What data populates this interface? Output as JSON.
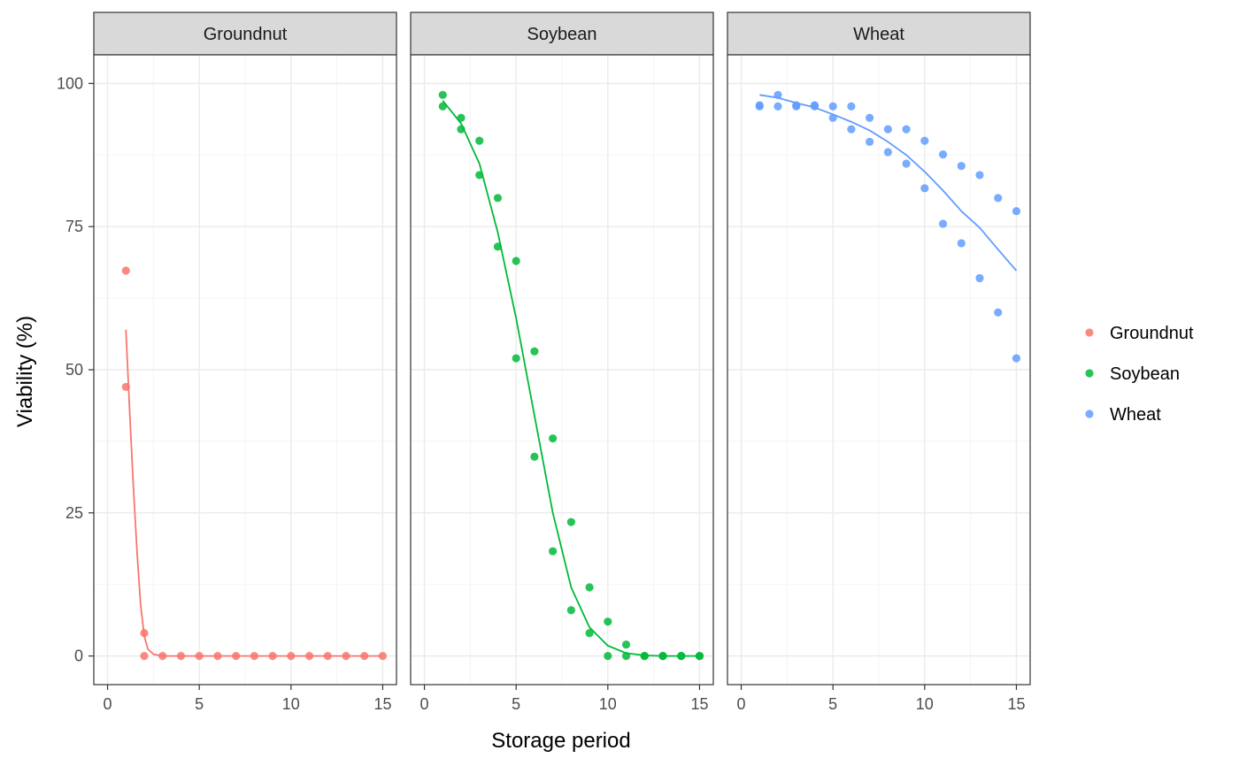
{
  "chart_data": {
    "type": "scatter",
    "facet_by": "series",
    "xlabel": "Storage period",
    "ylabel": "Viability (%)",
    "xlim": [
      -0.75,
      15.75
    ],
    "ylim": [
      -5,
      105
    ],
    "x_ticks": [
      0,
      5,
      10,
      15
    ],
    "y_ticks": [
      0,
      25,
      50,
      75,
      100
    ],
    "grid": true,
    "legend_position": "right",
    "series": [
      {
        "name": "Groundnut",
        "color": "#F8766D",
        "points": [
          [
            1,
            67.3
          ],
          [
            1,
            47
          ],
          [
            2,
            4
          ],
          [
            2,
            0
          ],
          [
            3,
            0
          ],
          [
            4,
            0
          ],
          [
            5,
            0
          ],
          [
            6,
            0
          ],
          [
            7,
            0
          ],
          [
            8,
            0
          ],
          [
            9,
            0
          ],
          [
            10,
            0
          ],
          [
            11,
            0
          ],
          [
            12,
            0
          ],
          [
            13,
            0
          ],
          [
            14,
            0
          ],
          [
            15,
            0
          ]
        ],
        "fit": [
          [
            1,
            57
          ],
          [
            1.2,
            43
          ],
          [
            1.4,
            30
          ],
          [
            1.6,
            18.5
          ],
          [
            1.8,
            9
          ],
          [
            2,
            3.5
          ],
          [
            2.2,
            1.2
          ],
          [
            2.5,
            0.3
          ],
          [
            3,
            0
          ],
          [
            5,
            0
          ],
          [
            10,
            0
          ],
          [
            15,
            0
          ]
        ]
      },
      {
        "name": "Soybean",
        "color": "#00BA38",
        "points": [
          [
            1,
            98
          ],
          [
            1,
            96
          ],
          [
            2,
            94
          ],
          [
            2,
            92
          ],
          [
            3,
            90
          ],
          [
            3,
            84
          ],
          [
            4,
            80
          ],
          [
            4,
            71.5
          ],
          [
            5,
            69
          ],
          [
            5,
            52
          ],
          [
            6,
            53.2
          ],
          [
            6,
            34.8
          ],
          [
            7,
            38
          ],
          [
            7,
            18.3
          ],
          [
            8,
            23.4
          ],
          [
            8,
            8
          ],
          [
            9,
            12
          ],
          [
            9,
            4
          ],
          [
            10,
            6
          ],
          [
            10,
            0
          ],
          [
            11,
            2
          ],
          [
            11,
            0
          ],
          [
            12,
            0
          ],
          [
            12,
            0
          ],
          [
            13,
            0
          ],
          [
            13,
            0
          ],
          [
            14,
            0
          ],
          [
            14,
            0
          ],
          [
            15,
            0
          ],
          [
            15,
            0
          ]
        ],
        "fit": [
          [
            1,
            97
          ],
          [
            2,
            93
          ],
          [
            3,
            86
          ],
          [
            4,
            74
          ],
          [
            5,
            59
          ],
          [
            6,
            42
          ],
          [
            7,
            25
          ],
          [
            8,
            12
          ],
          [
            9,
            5
          ],
          [
            10,
            1.8
          ],
          [
            11,
            0.5
          ],
          [
            12,
            0.1
          ],
          [
            13,
            0
          ],
          [
            15,
            0
          ]
        ]
      },
      {
        "name": "Wheat",
        "color": "#619CFF",
        "points": [
          [
            1,
            96.2
          ],
          [
            1,
            96
          ],
          [
            2,
            98
          ],
          [
            2,
            96
          ],
          [
            3,
            96.2
          ],
          [
            3,
            96
          ],
          [
            4,
            96.2
          ],
          [
            4,
            96
          ],
          [
            5,
            96
          ],
          [
            5,
            94
          ],
          [
            6,
            96
          ],
          [
            6,
            92
          ],
          [
            7,
            94
          ],
          [
            7,
            89.8
          ],
          [
            8,
            92
          ],
          [
            8,
            88
          ],
          [
            9,
            92
          ],
          [
            9,
            86
          ],
          [
            10,
            90
          ],
          [
            10,
            81.7
          ],
          [
            11,
            87.6
          ],
          [
            11,
            75.5
          ],
          [
            12,
            85.6
          ],
          [
            12,
            72.1
          ],
          [
            13,
            84
          ],
          [
            13,
            66
          ],
          [
            14,
            80
          ],
          [
            14,
            60
          ],
          [
            15,
            77.7
          ],
          [
            15,
            52
          ]
        ],
        "fit": [
          [
            1,
            98
          ],
          [
            2,
            97.5
          ],
          [
            3,
            96.6
          ],
          [
            4,
            95.8
          ],
          [
            5,
            94.6
          ],
          [
            6,
            93.3
          ],
          [
            7,
            91.8
          ],
          [
            8,
            89.8
          ],
          [
            9,
            87.5
          ],
          [
            10,
            84.6
          ],
          [
            11,
            81.3
          ],
          [
            12,
            77.7
          ],
          [
            13,
            74.8
          ],
          [
            14,
            71
          ],
          [
            15,
            67.3
          ]
        ]
      }
    ]
  }
}
